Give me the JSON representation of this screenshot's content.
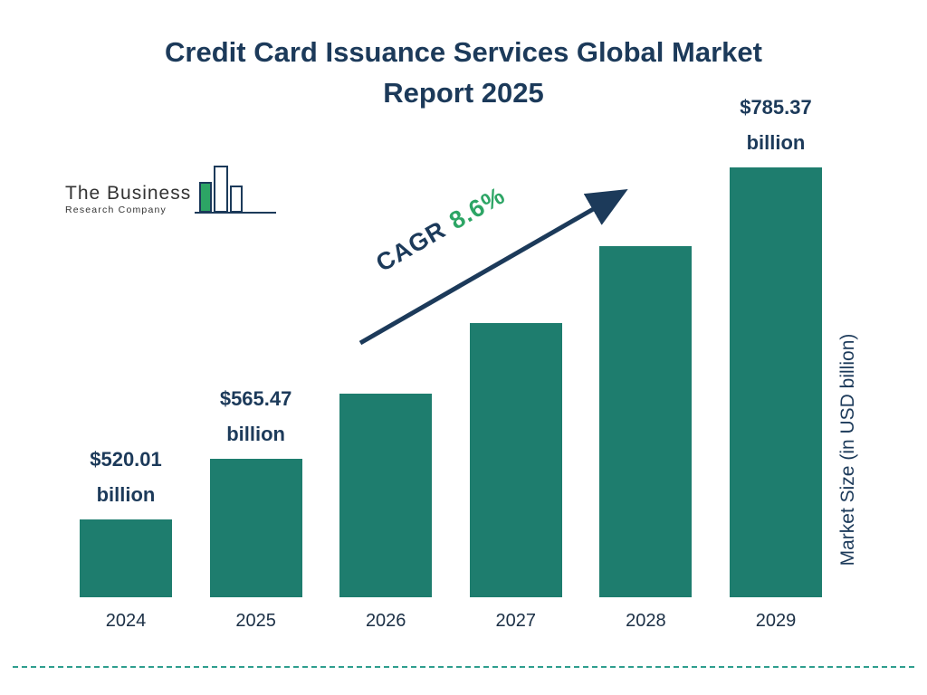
{
  "title": {
    "line1": "Credit Card Issuance Services Global Market",
    "line2": "Report 2025"
  },
  "logo": {
    "name": "The Business",
    "subtitle": "Research Company"
  },
  "cagr": {
    "label": "CAGR",
    "value": "8.6%"
  },
  "colors": {
    "navy": "#1c3a5a",
    "teal": "#1e7d6e",
    "green": "#2da565",
    "dash": "#2f9e8e"
  },
  "chart_data": {
    "type": "bar",
    "title": "Credit Card Issuance Services Global Market Report 2025",
    "categories": [
      "2024",
      "2025",
      "2026",
      "2027",
      "2028",
      "2029"
    ],
    "values": [
      520.01,
      565.47,
      614.1,
      666.9,
      724.3,
      785.37
    ],
    "ylabel": "Market Size (in USD billion)",
    "xlabel": "",
    "legend": "none",
    "grid": false,
    "bar_color": "#1e7d6e",
    "cagr": "8.6%",
    "bars": [
      {
        "year": "2024",
        "value": 520.01,
        "label_lines": [
          "$520.01",
          "billion"
        ]
      },
      {
        "year": "2025",
        "value": 565.47,
        "label_lines": [
          "$565.47",
          "billion"
        ]
      },
      {
        "year": "2026",
        "value": 614.1,
        "label_lines": null
      },
      {
        "year": "2027",
        "value": 666.9,
        "label_lines": null
      },
      {
        "year": "2028",
        "value": 724.3,
        "label_lines": null
      },
      {
        "year": "2029",
        "value": 785.37,
        "label_lines": [
          "$785.37",
          "billion"
        ]
      }
    ]
  }
}
